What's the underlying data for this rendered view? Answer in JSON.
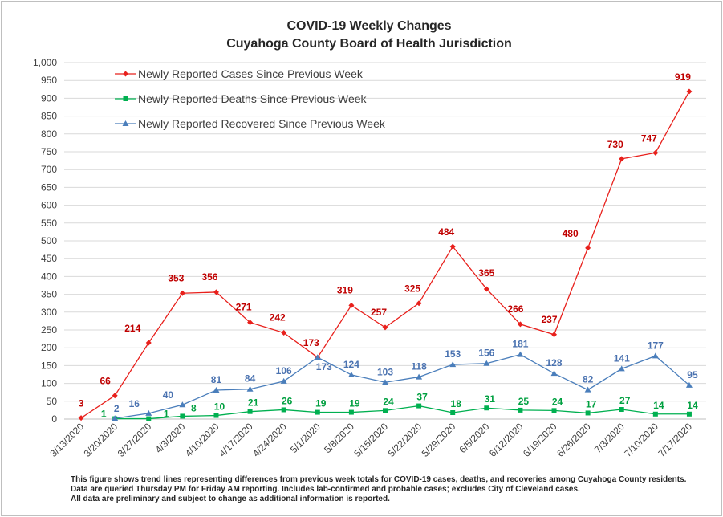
{
  "chart_data": {
    "type": "line",
    "title": "COVID-19 Weekly Changes",
    "subtitle": "Cuyahoga County Board of Health Jurisdiction",
    "categories": [
      "3/13/2020",
      "3/20/2020",
      "3/27/2020",
      "4/3/2020",
      "4/10/2020",
      "4/17/2020",
      "4/24/2020",
      "5/1/2020",
      "5/8/2020",
      "5/15/2020",
      "5/22/2020",
      "5/29/2020",
      "6/5/2020",
      "6/12/2020",
      "6/19/2020",
      "6/26/2020",
      "7/3/2020",
      "7/10/2020",
      "7/17/2020"
    ],
    "ylim": [
      0,
      1000
    ],
    "ytick_step": 50,
    "ytick_labels": [
      "0",
      "50",
      "100",
      "150",
      "200",
      "250",
      "300",
      "350",
      "400",
      "450",
      "500",
      "550",
      "600",
      "650",
      "700",
      "750",
      "800",
      "850",
      "900",
      "950",
      "1,000"
    ],
    "grid": "horizontal",
    "legend_placement": "top-left",
    "series": [
      {
        "name": "Newly Reported Cases Since Previous Week",
        "color": "#e8201c",
        "label_color": "#c00000",
        "marker": "diamond",
        "values": [
          3,
          66,
          214,
          353,
          356,
          271,
          242,
          173,
          319,
          257,
          325,
          484,
          365,
          266,
          237,
          480,
          730,
          747,
          919
        ]
      },
      {
        "name": "Newly Reported Deaths Since Previous Week",
        "color": "#00b050",
        "label_color": "#00a040",
        "marker": "square",
        "values": [
          null,
          1,
          1,
          8,
          10,
          21,
          26,
          19,
          19,
          24,
          37,
          18,
          31,
          25,
          24,
          17,
          27,
          14,
          14
        ]
      },
      {
        "name": "Newly Reported Recovered Since Previous Week",
        "color": "#4a7ebb",
        "label_color": "#4a72b0",
        "marker": "triangle",
        "values": [
          null,
          2,
          16,
          40,
          81,
          84,
          106,
          173,
          124,
          103,
          118,
          153,
          156,
          181,
          128,
          82,
          141,
          177,
          95
        ]
      }
    ]
  },
  "footnote": [
    "This figure shows trend lines representing differences from previous week totals for COVID-19 cases, deaths, and recoveries among Cuyahoga County residents.",
    "Data are queried Thursday PM for Friday AM reporting. Includes lab-confirmed and probable cases; excludes City of Cleveland cases.",
    "All data are preliminary and subject to change as additional information is reported."
  ]
}
